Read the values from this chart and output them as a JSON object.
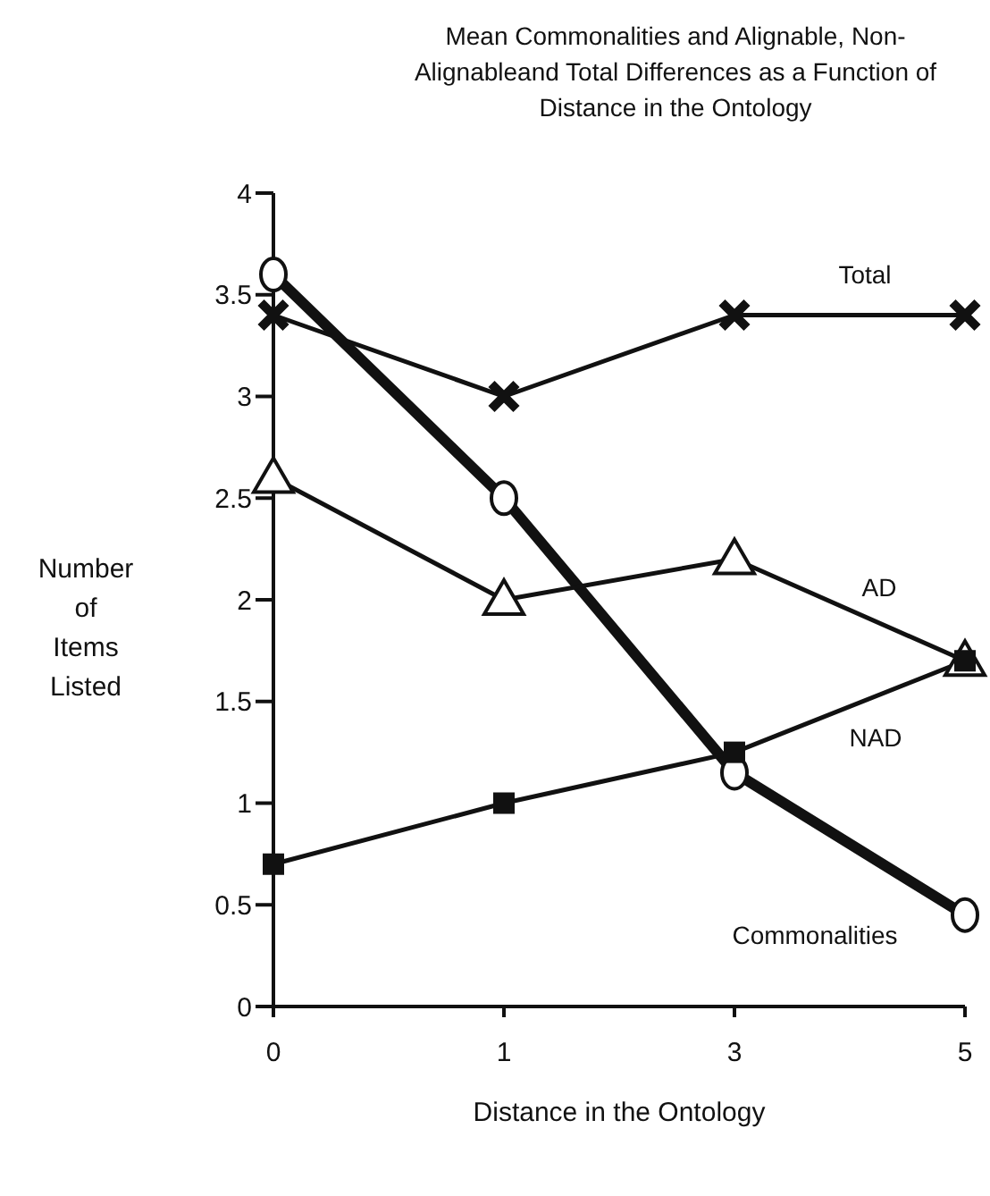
{
  "chart_data": {
    "type": "line",
    "title": "Mean Commonalities and Alignable, Non-Alignableand Total Differences as a Function of Distance in the Ontology",
    "xlabel": "Distance in the Ontology",
    "ylabel": "Number of Items Listed",
    "categories": [
      "0",
      "1",
      "3",
      "5"
    ],
    "ylim": [
      0,
      4
    ],
    "yticks": [
      0,
      0.5,
      1,
      1.5,
      2,
      2.5,
      3,
      3.5,
      4
    ],
    "grid": false,
    "legend": false,
    "series": [
      {
        "name": "Total",
        "color": "#111111",
        "marker": "cross",
        "values": [
          3.4,
          3.0,
          3.4,
          3.4
        ]
      },
      {
        "name": "Commonalities",
        "color": "#111111",
        "marker": "circle",
        "values": [
          3.6,
          2.5,
          1.15,
          0.45
        ]
      },
      {
        "name": "AD",
        "color": "#111111",
        "marker": "triangle",
        "values": [
          2.6,
          2.0,
          2.2,
          1.7
        ]
      },
      {
        "name": "NAD",
        "color": "#111111",
        "marker": "square",
        "values": [
          0.7,
          1.0,
          1.25,
          1.7
        ]
      }
    ]
  }
}
